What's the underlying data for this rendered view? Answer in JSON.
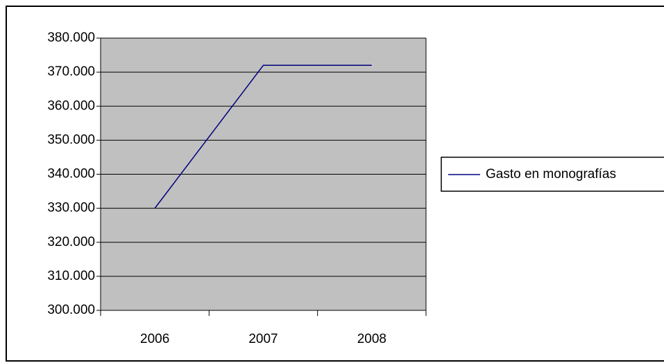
{
  "chart_data": {
    "type": "line",
    "categories": [
      "2006",
      "2007",
      "2008"
    ],
    "series": [
      {
        "name": "Gasto en monografías",
        "color": "#000080",
        "values": [
          330000,
          372000,
          372000
        ]
      }
    ],
    "ylim": [
      300000,
      380000
    ],
    "yticks": [
      {
        "value": 300000,
        "label": "300.000"
      },
      {
        "value": 310000,
        "label": "310.000"
      },
      {
        "value": 320000,
        "label": "320.000"
      },
      {
        "value": 330000,
        "label": "330.000"
      },
      {
        "value": 340000,
        "label": "340.000"
      },
      {
        "value": 350000,
        "label": "350.000"
      },
      {
        "value": 360000,
        "label": "360.000"
      },
      {
        "value": 370000,
        "label": "370.000"
      },
      {
        "value": 380000,
        "label": "380.000"
      }
    ],
    "grid": true,
    "legend": "right"
  }
}
